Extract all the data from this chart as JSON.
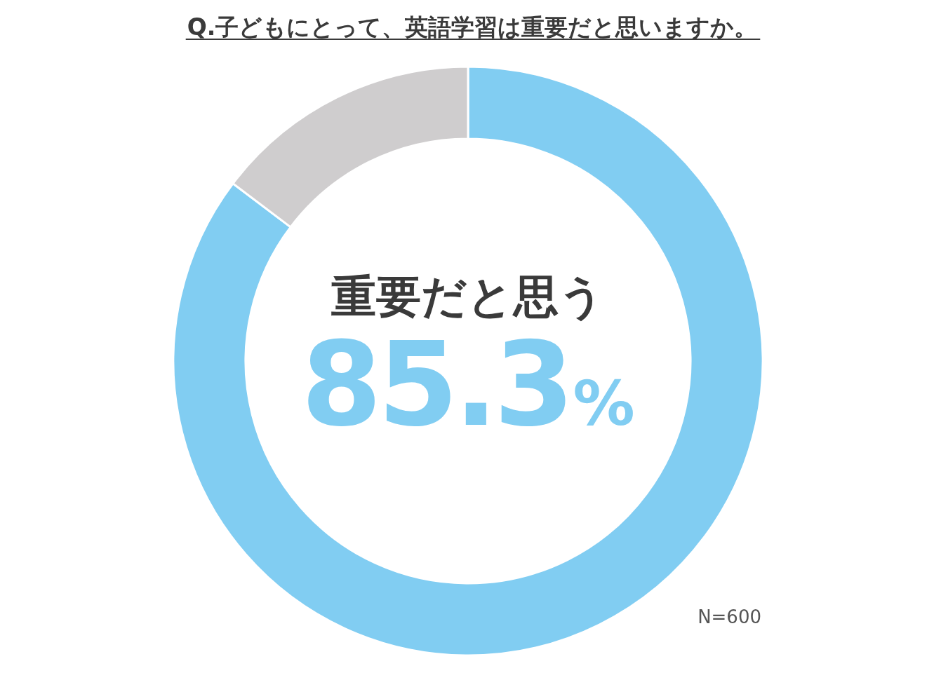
{
  "chart_data": {
    "type": "donut",
    "title": "Q.子どもにとって、英語学習は重要だと思いますか。",
    "categories": [
      "重要だと思う",
      null
    ],
    "values": [
      85.3,
      14.7
    ],
    "colors": [
      "#81cdf2",
      "#cfcdce"
    ],
    "value_labels": [
      "85.3%",
      null
    ],
    "annotations": [
      "N=600"
    ]
  }
}
